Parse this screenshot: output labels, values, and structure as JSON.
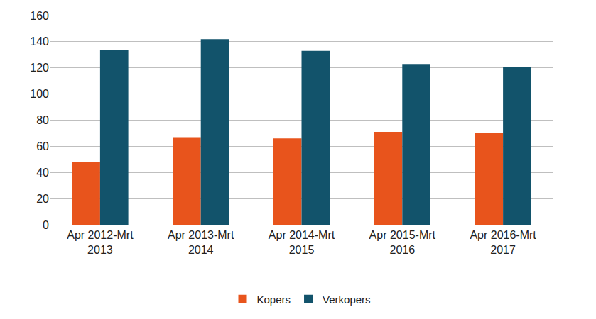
{
  "chart_data": {
    "type": "bar",
    "categories": [
      "Apr 2012-Mrt 2013",
      "Apr 2013-Mrt 2014",
      "Apr 2014-Mrt 2015",
      "Apr 2015-Mrt 2016",
      "Apr 2016-Mrt 2017"
    ],
    "series": [
      {
        "name": "Kopers",
        "color": "#e8541c",
        "values": [
          48,
          67,
          66,
          71,
          70
        ]
      },
      {
        "name": "Verkopers",
        "color": "#12536b",
        "values": [
          134,
          142,
          133,
          123,
          121
        ]
      }
    ],
    "ylim": [
      0,
      160
    ],
    "yticks": [
      0,
      20,
      40,
      60,
      80,
      100,
      120,
      140,
      160
    ],
    "grid": true,
    "legend": "bottom"
  }
}
